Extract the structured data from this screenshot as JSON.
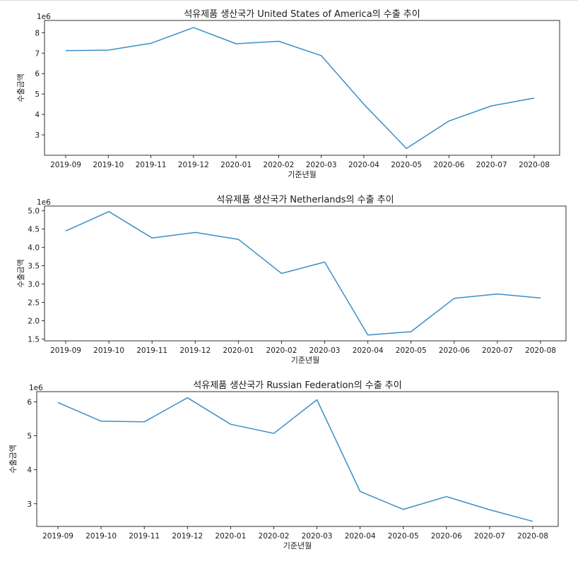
{
  "chart_data": [
    {
      "type": "line",
      "title": "석유제품 생산국가 United States of America의 수출 추이",
      "xlabel": "기준년월",
      "ylabel": "수출금액",
      "offset_text": "1e6",
      "categories": [
        "2019-09",
        "2019-10",
        "2019-11",
        "2019-12",
        "2020-01",
        "2020-02",
        "2020-03",
        "2020-04",
        "2020-05",
        "2020-06",
        "2020-07",
        "2020-08"
      ],
      "series": [
        {
          "values": [
            7.12,
            7.15,
            7.48,
            8.25,
            7.46,
            7.58,
            6.88,
            4.5,
            2.33,
            3.68,
            4.42,
            4.8
          ]
        }
      ],
      "ylim": [
        2.0,
        8.6
      ],
      "yticks": [
        3,
        4,
        5,
        6,
        7,
        8
      ],
      "ytick_labels": [
        "3",
        "4",
        "5",
        "6",
        "7",
        "8"
      ],
      "grid": false,
      "color": "#3a8fc7"
    },
    {
      "type": "line",
      "title": "석유제품 생산국가 Netherlands의 수출 추이",
      "xlabel": "기준년월",
      "ylabel": "수출금액",
      "offset_text": "1e6",
      "categories": [
        "2019-09",
        "2019-10",
        "2019-11",
        "2019-12",
        "2020-01",
        "2020-02",
        "2020-03",
        "2020-04",
        "2020-05",
        "2020-06",
        "2020-07",
        "2020-08"
      ],
      "series": [
        {
          "values": [
            4.45,
            4.98,
            4.26,
            4.41,
            4.22,
            3.29,
            3.6,
            1.61,
            1.7,
            2.61,
            2.73,
            2.62
          ]
        }
      ],
      "ylim": [
        1.45,
        5.13
      ],
      "yticks": [
        1.5,
        2.0,
        2.5,
        3.0,
        3.5,
        4.0,
        4.5,
        5.0
      ],
      "ytick_labels": [
        "1.5",
        "2.0",
        "2.5",
        "3.0",
        "3.5",
        "4.0",
        "4.5",
        "5.0"
      ],
      "grid": false,
      "color": "#3a8fc7"
    },
    {
      "type": "line",
      "title": "석유제품 생산국가 Russian Federation의 수출 추이",
      "xlabel": "기준년월",
      "ylabel": "수출금액",
      "offset_text": "1e6",
      "categories": [
        "2019-09",
        "2019-10",
        "2019-11",
        "2019-12",
        "2020-01",
        "2020-02",
        "2020-03",
        "2020-04",
        "2020-05",
        "2020-06",
        "2020-07",
        "2020-08"
      ],
      "series": [
        {
          "values": [
            5.98,
            5.43,
            5.41,
            6.12,
            5.34,
            5.07,
            6.06,
            3.36,
            2.83,
            3.21,
            2.82,
            2.48
          ]
        }
      ],
      "ylim": [
        2.33,
        6.3
      ],
      "yticks": [
        3,
        4,
        5,
        6
      ],
      "ytick_labels": [
        "3",
        "4",
        "5",
        "6"
      ],
      "grid": false,
      "color": "#3a8fc7"
    }
  ]
}
